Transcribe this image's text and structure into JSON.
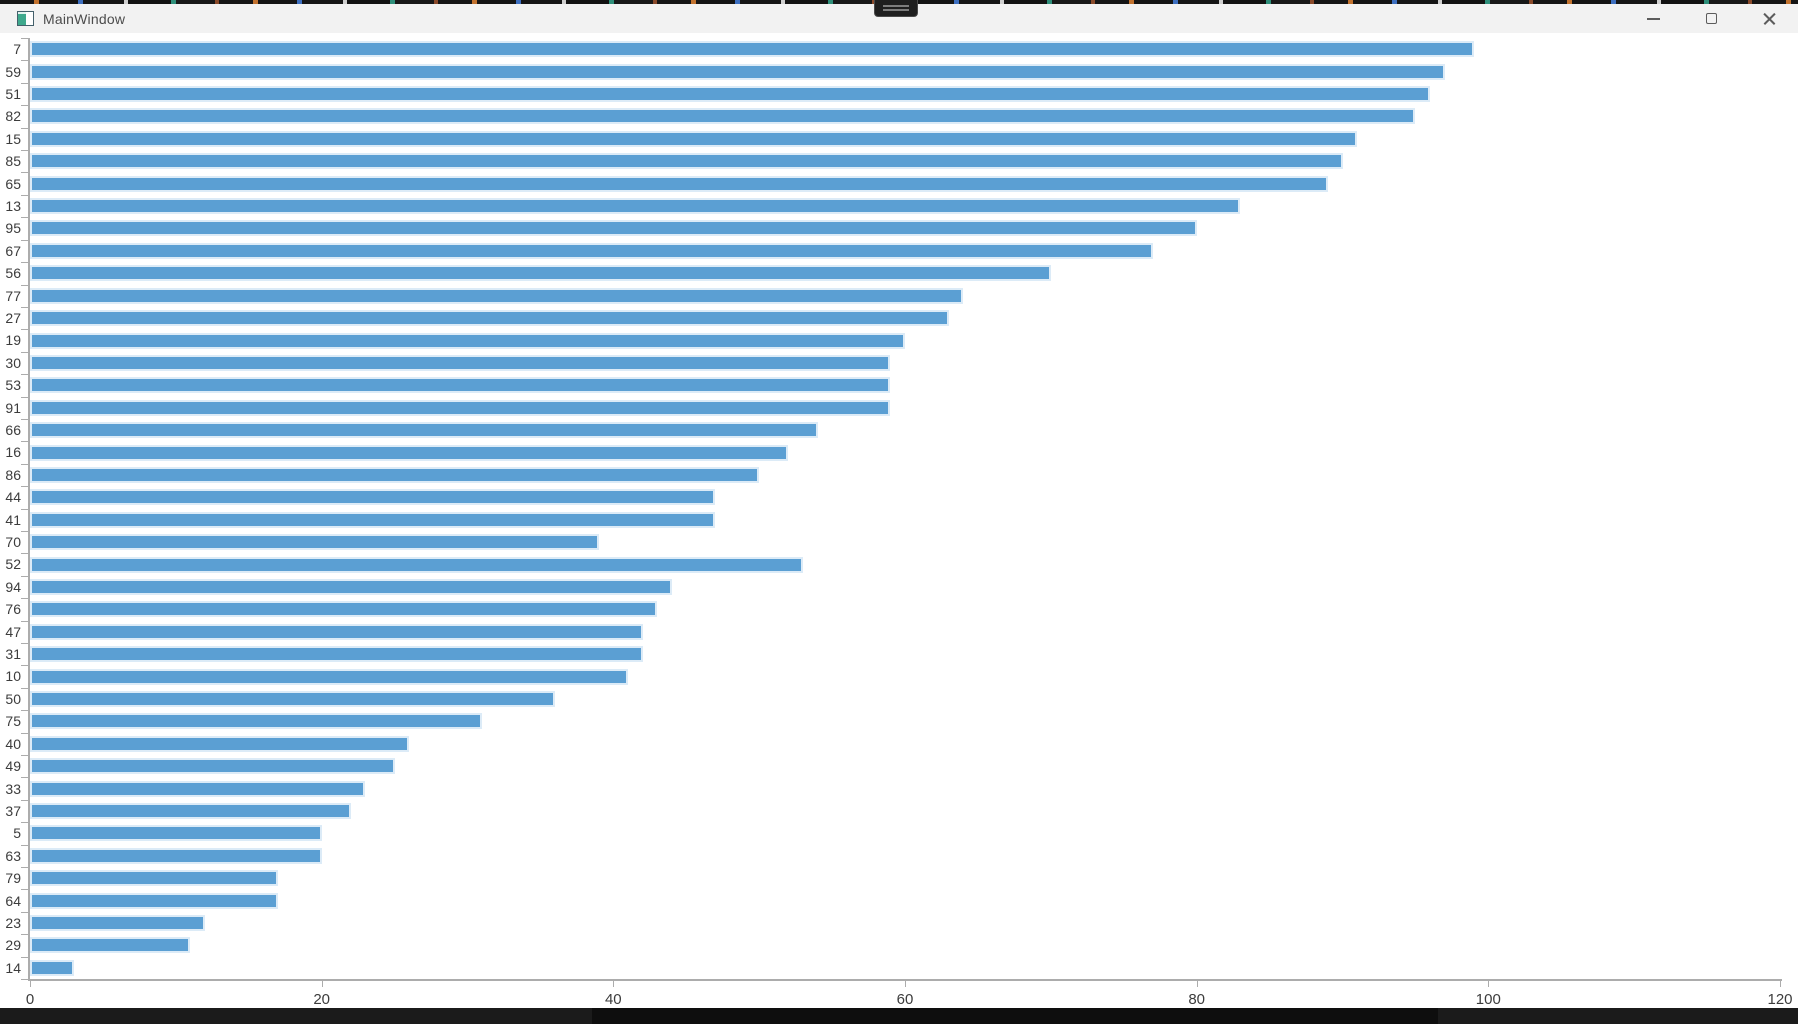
{
  "window": {
    "title": "MainWindow",
    "controls": [
      {
        "name": "minimize"
      },
      {
        "name": "maximize"
      },
      {
        "name": "close"
      }
    ]
  },
  "status_bar": {
    "icon": "green-dot"
  },
  "chart_data": {
    "type": "bar",
    "orientation": "horizontal",
    "title": "",
    "xlabel": "",
    "ylabel": "",
    "categories": [
      "7",
      "59",
      "51",
      "82",
      "15",
      "85",
      "65",
      "13",
      "95",
      "67",
      "56",
      "77",
      "27",
      "19",
      "30",
      "53",
      "91",
      "66",
      "16",
      "86",
      "44",
      "41",
      "70",
      "52",
      "94",
      "76",
      "47",
      "31",
      "10",
      "50",
      "75",
      "40",
      "49",
      "33",
      "37",
      "5",
      "63",
      "79",
      "64",
      "23",
      "29",
      "14"
    ],
    "values": [
      99,
      97,
      96,
      95,
      91,
      90,
      89,
      83,
      80,
      77,
      70,
      64,
      63,
      60,
      59,
      59,
      59,
      54,
      52,
      50,
      47,
      47,
      39,
      53,
      44,
      43,
      42,
      42,
      41,
      36,
      31,
      26,
      25,
      23,
      22,
      20,
      20,
      17,
      17,
      12,
      11,
      3
    ],
    "xlim": [
      0,
      120
    ],
    "x_ticks": [
      0,
      20,
      40,
      60,
      80,
      100,
      120
    ],
    "grid": false,
    "legend": false,
    "bar_color": "#5B9FD3",
    "bar_edge_color": "#DCEBF7",
    "axis_color": "#ACACAC",
    "label_color": "#3C3C3C"
  }
}
